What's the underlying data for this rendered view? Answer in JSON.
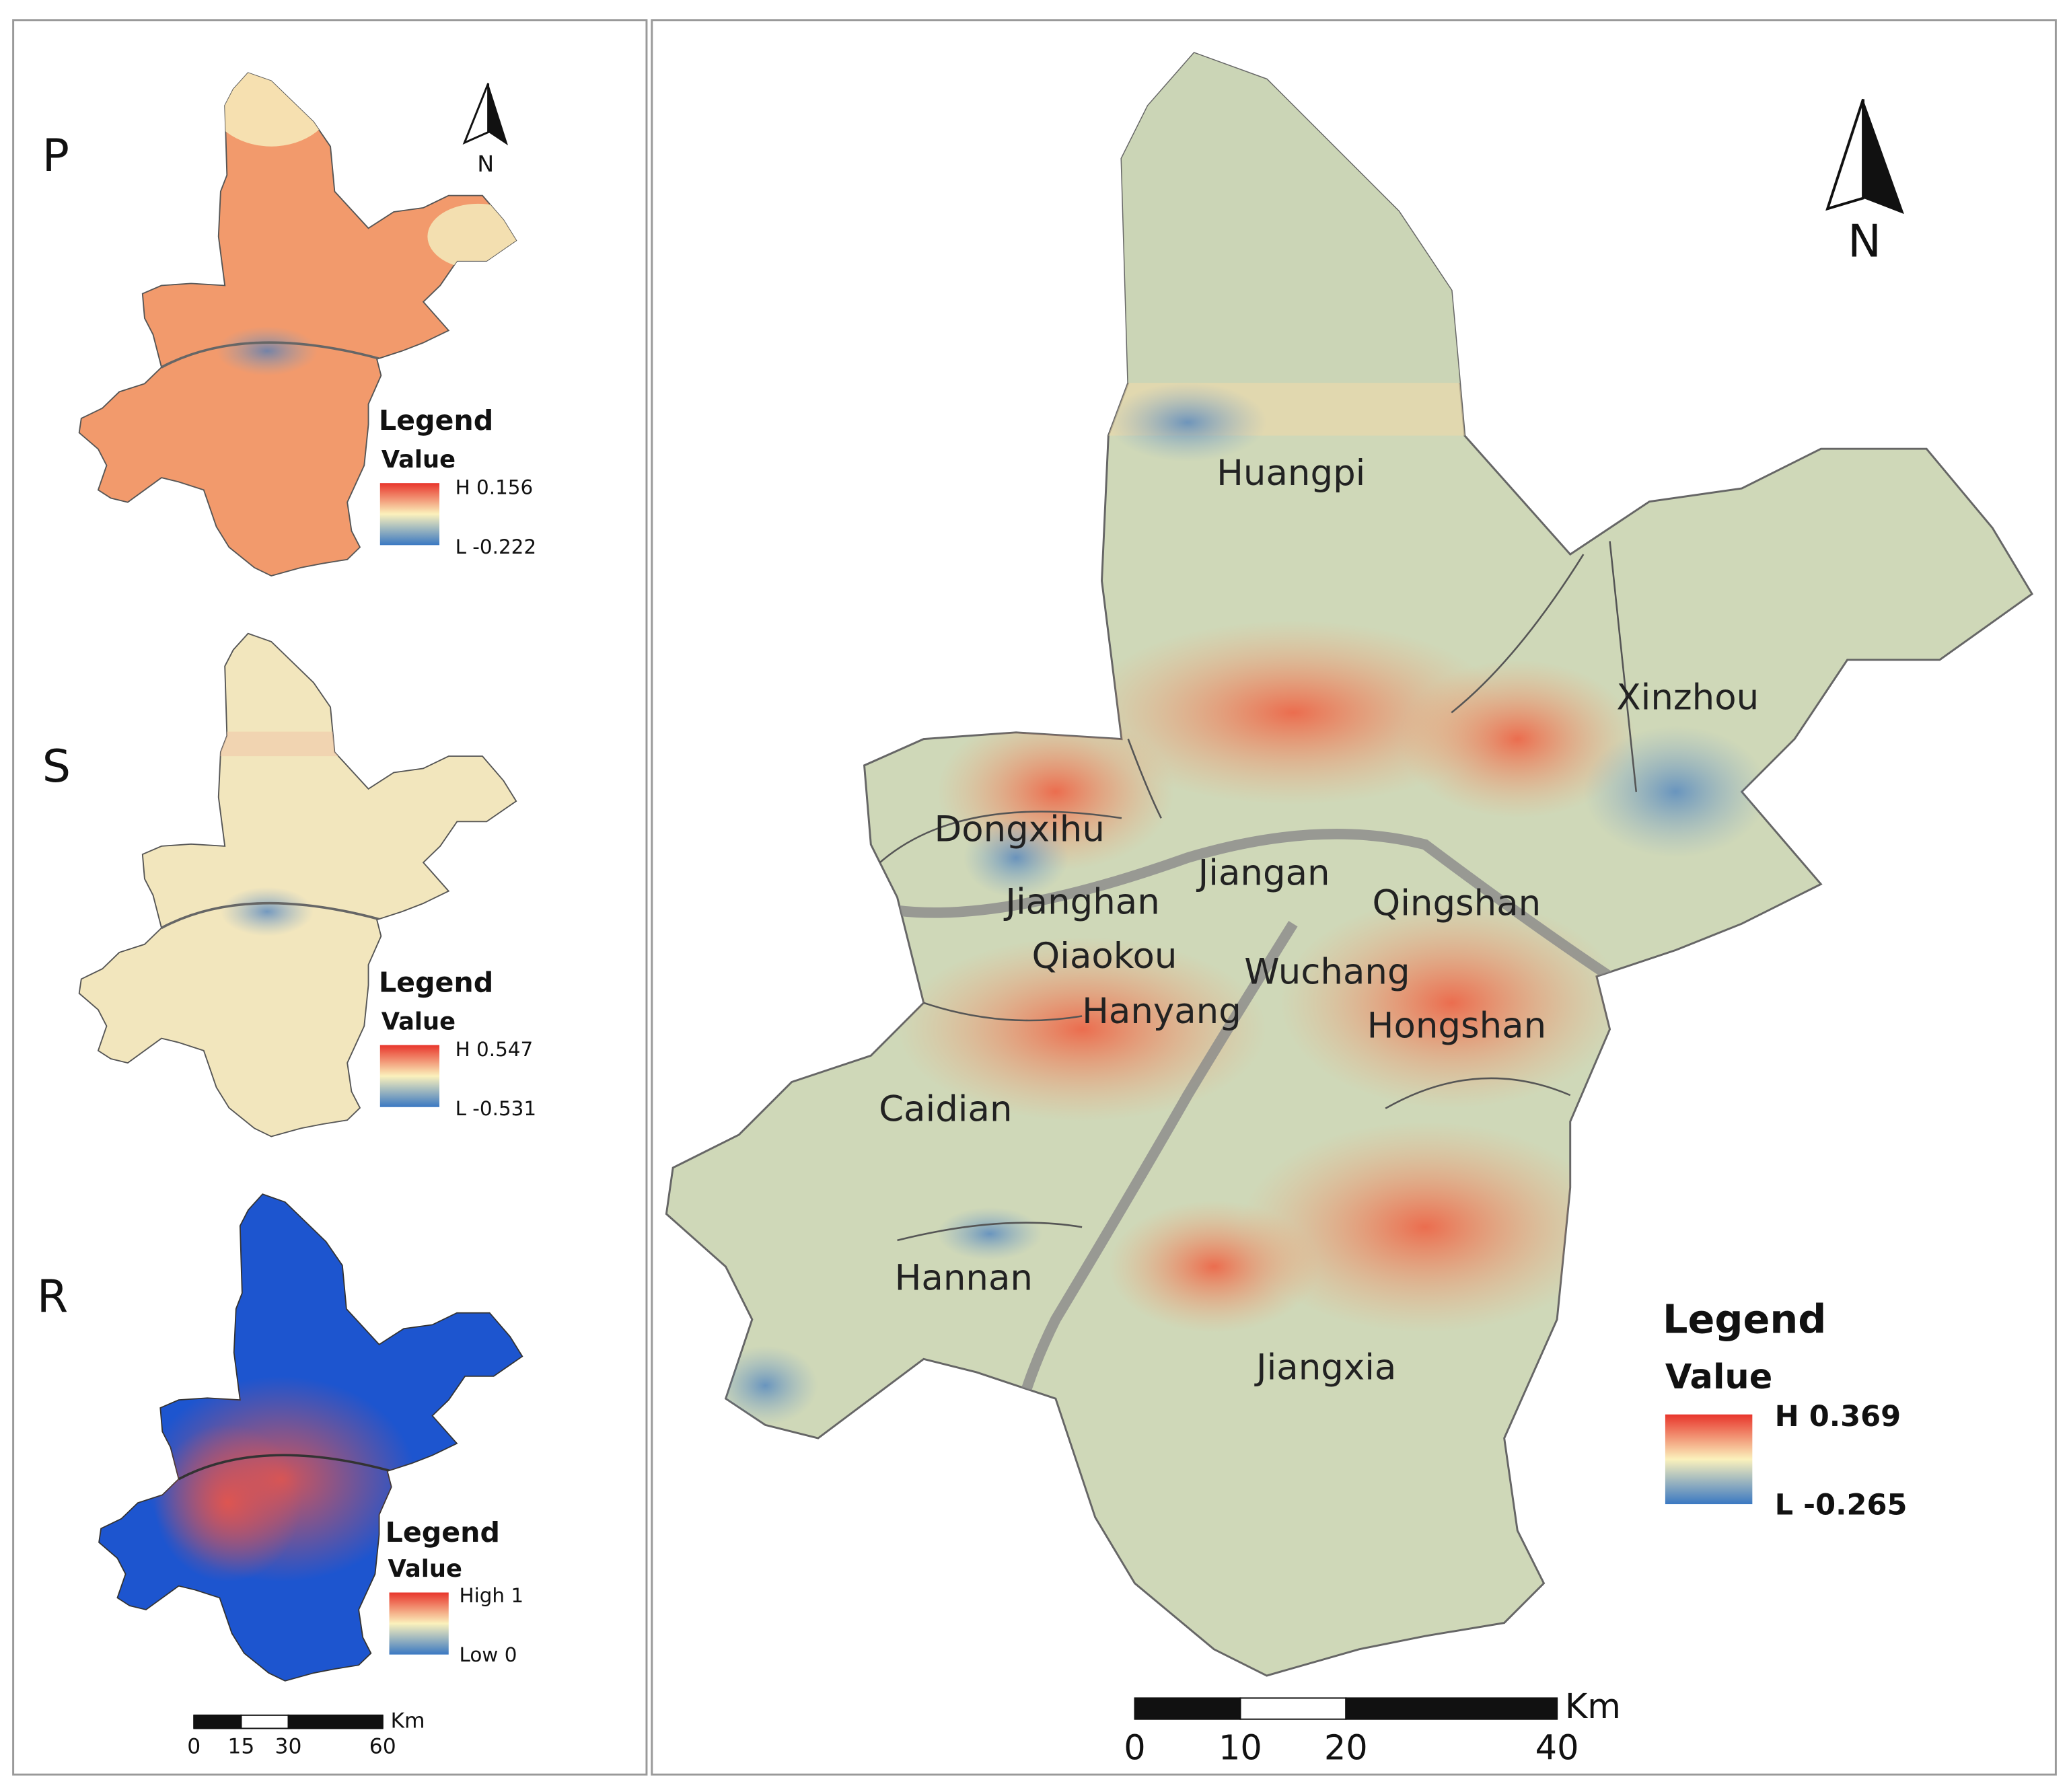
{
  "panels": [
    {
      "letter": "P",
      "legend": {
        "title": "Legend",
        "subtitle": "Value",
        "high": "H 0.156",
        "low": "L -0.222"
      }
    },
    {
      "letter": "S",
      "legend": {
        "title": "Legend",
        "subtitle": "Value",
        "high": "H 0.547",
        "low": "L -0.531"
      }
    },
    {
      "letter": "R",
      "legend": {
        "title": "Legend",
        "subtitle": "Value",
        "high": "High 1",
        "low": "Low 0"
      }
    }
  ],
  "north_label": "N",
  "small_scale": {
    "unit": "Km",
    "ticks": [
      0,
      15,
      30,
      60
    ]
  },
  "main": {
    "districts": [
      "Huangpi",
      "Xinzhou",
      "Dongxihu",
      "Jiangan",
      "Jianghan",
      "Qingshan",
      "Qiaokou",
      "Wuchang",
      "Hanyang",
      "Hongshan",
      "Caidian",
      "Hannan",
      "Jiangxia"
    ],
    "legend": {
      "title": "Legend",
      "subtitle": "Value",
      "high": "H 0.369",
      "low": "L -0.265"
    },
    "scale": {
      "unit": "Km",
      "ticks": [
        0,
        10,
        20,
        40
      ]
    }
  }
}
